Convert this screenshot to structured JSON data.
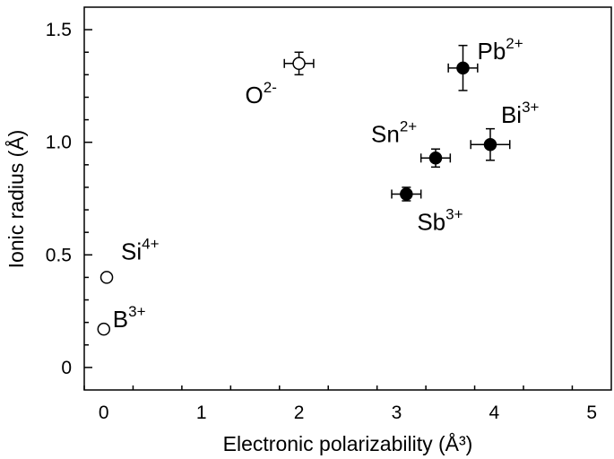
{
  "chart_data": {
    "type": "scatter",
    "title": "",
    "xlabel": "Electronic polarizability (Å³)",
    "ylabel": "Ionic radius (Å)",
    "xlim": [
      -0.2,
      5.2
    ],
    "ylim": [
      -0.1,
      1.6
    ],
    "xticks": [
      "0",
      "1",
      "2",
      "3",
      "4",
      "5"
    ],
    "yticks": [
      "0",
      "0.5",
      "1.0",
      "1.5"
    ],
    "grid": false,
    "points": [
      {
        "ion": "B",
        "charge": "3+",
        "x": 0.0,
        "y": 0.17,
        "filled": false
      },
      {
        "ion": "Si",
        "charge": "4+",
        "x": 0.03,
        "y": 0.4,
        "filled": false
      },
      {
        "ion": "O",
        "charge": "2-",
        "x": 2.0,
        "y": 1.35,
        "xerr": 0.15,
        "yerr": 0.05,
        "filled": false
      },
      {
        "ion": "Sb",
        "charge": "3+",
        "x": 3.1,
        "y": 0.77,
        "xerr": 0.15,
        "yerr": 0.03,
        "filled": true
      },
      {
        "ion": "Sn",
        "charge": "2+",
        "x": 3.4,
        "y": 0.93,
        "xerr": 0.15,
        "yerr": 0.04,
        "filled": true
      },
      {
        "ion": "Bi",
        "charge": "3+",
        "x": 3.96,
        "y": 0.99,
        "xerr": 0.2,
        "yerr": 0.07,
        "filled": true
      },
      {
        "ion": "Pb",
        "charge": "2+",
        "x": 3.68,
        "y": 1.33,
        "xerr": 0.15,
        "yerr": 0.1,
        "filled": true
      }
    ]
  }
}
